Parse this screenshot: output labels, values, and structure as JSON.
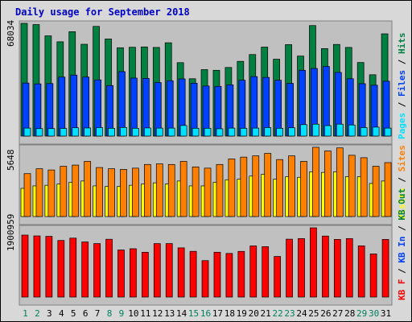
{
  "chart_data": {
    "type": "bar",
    "title": "Daily usage for September 2018",
    "categories": [
      "1",
      "2",
      "3",
      "4",
      "5",
      "6",
      "7",
      "8",
      "9",
      "10",
      "11",
      "12",
      "13",
      "14",
      "15",
      "16",
      "17",
      "18",
      "19",
      "20",
      "21",
      "22",
      "23",
      "24",
      "25",
      "26",
      "27",
      "28",
      "29",
      "30",
      "31"
    ],
    "weekend_days": [
      "1",
      "2",
      "8",
      "9",
      "15",
      "16",
      "22",
      "23",
      "29",
      "30"
    ],
    "colors": {
      "hits": "#008040",
      "files": "#0040ff",
      "pages": "#00e0ff",
      "visits": "#ffff00",
      "sites": "#ff8000",
      "kbytes": "#ff0000",
      "weekend_label": "#00805c",
      "weekday_label": "#000000",
      "title": "#0000c8",
      "plot_bg": "#c0c0c0",
      "frame_bg": "#d8d8d8"
    },
    "panels": [
      {
        "id": "hits-files-pages",
        "ymax_label": "68034",
        "ymax": 68034,
        "legend": [
          {
            "text": "Pages",
            "color": "#00e0ff"
          },
          {
            "text": " / ",
            "color": "#000000"
          },
          {
            "text": "Files",
            "color": "#0040ff"
          },
          {
            "text": " / ",
            "color": "#000000"
          },
          {
            "text": "Hits",
            "color": "#008040"
          }
        ],
        "series": [
          {
            "key": "hits",
            "values": [
              68034,
              67300,
              60500,
              56900,
              63000,
              55400,
              66200,
              58600,
              53300,
              53600,
              53800,
              53500,
              56300,
              44300,
              34600,
              40100,
              39700,
              41400,
              45100,
              49200,
              53700,
              46400,
              55200,
              48300,
              66700,
              52800,
              55300,
              53500,
              44400,
              37000,
              61700
            ]
          },
          {
            "key": "files",
            "values": [
              32000,
              31500,
              31700,
              35600,
              36800,
              35600,
              33900,
              30500,
              38900,
              35000,
              34800,
              32300,
              33400,
              34500,
              31900,
              30200,
              30000,
              30900,
              33700,
              35900,
              35400,
              33700,
              31800,
              39700,
              40800,
              42000,
              38400,
              34600,
              31600,
              30700,
              33100
            ]
          },
          {
            "key": "pages",
            "values": [
              4800,
              4500,
              4500,
              4600,
              5000,
              4900,
              5100,
              4700,
              5200,
              4700,
              4900,
              4800,
              4800,
              6400,
              4700,
              4700,
              4400,
              4800,
              4700,
              4800,
              5100,
              4700,
              5000,
              6900,
              7200,
              6300,
              7200,
              6700,
              5100,
              5400,
              4800
            ]
          }
        ]
      },
      {
        "id": "visits-sites",
        "ymax_label": "5648",
        "ymax": 5648,
        "legend": [
          {
            "text": "Visits",
            "color": "#ffff00"
          },
          {
            "text": " / ",
            "color": "#000000"
          },
          {
            "text": "Sites",
            "color": "#ff8000"
          }
        ],
        "series": [
          {
            "key": "sites",
            "values": [
              3500,
              3900,
              3800,
              4100,
              4200,
              4500,
              4000,
              3900,
              3850,
              3950,
              4250,
              4300,
              4250,
              4500,
              4050,
              3950,
              4250,
              4700,
              4850,
              4950,
              5150,
              4650,
              4950,
              4500,
              5650,
              5350,
              5600,
              5000,
              4800,
              4100,
              4400
            ]
          },
          {
            "key": "visits",
            "values": [
              2300,
              2500,
              2550,
              2650,
              2800,
              2900,
              2500,
              2450,
              2450,
              2550,
              2650,
              2750,
              2650,
              2900,
              2500,
              2500,
              2800,
              3000,
              3050,
              3300,
              3450,
              3050,
              3250,
              3200,
              3650,
              3600,
              3650,
              3250,
              3250,
              2700,
              2900
            ]
          }
        ]
      },
      {
        "id": "kbytes",
        "ymax_label": "1900959",
        "ymax": 1900959,
        "legend": [
          {
            "text": "KB F",
            "color": "#ff0000"
          },
          {
            "text": " / ",
            "color": "#000000"
          },
          {
            "text": "KB In",
            "color": "#0040ff"
          },
          {
            "text": " / ",
            "color": "#000000"
          },
          {
            "text": "KB Out",
            "color": "#008040"
          }
        ],
        "series": [
          {
            "key": "kbytes",
            "values": [
              1702000,
              1679000,
              1667000,
              1554000,
              1618000,
              1513000,
              1469000,
              1587000,
              1293000,
              1327000,
              1230000,
              1468000,
              1469000,
              1351000,
              1255000,
              1000000,
              1231000,
              1198000,
              1254000,
              1404000,
              1383000,
              1115000,
              1589000,
              1606000,
              1901000,
              1675000,
              1583000,
              1606000,
              1406000,
              1184000,
              1583000
            ]
          }
        ]
      }
    ]
  }
}
